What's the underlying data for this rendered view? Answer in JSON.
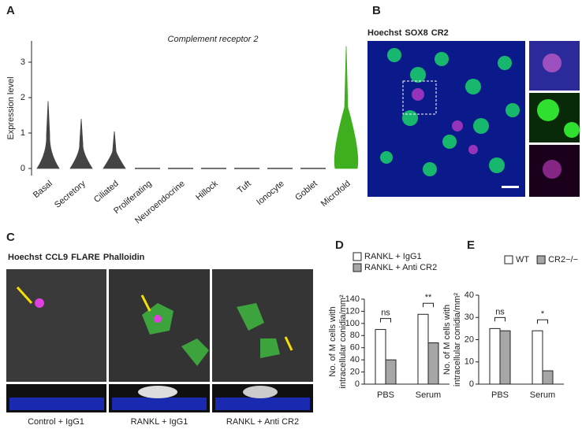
{
  "figure": {
    "b_label": "B",
    "b_legend": [
      "Hoechst",
      "SOX8",
      "CR2"
    ],
    "c_label": "C",
    "c_legend": [
      "Hoechst",
      "CCL9",
      "FLARE",
      "Phalloidin"
    ],
    "c_captions": [
      "Control + IgG1",
      "RANKL + IgG1",
      "RANKL + Anti CR2"
    ]
  },
  "chart_data": [
    {
      "type": "violin",
      "panel_label": "A",
      "title": "Complement receptor 2",
      "ylabel": "Expression level",
      "categories": [
        "Basal",
        "Secretory",
        "Ciliated",
        "Proliferating",
        "Neuroendocrine",
        "Hillock",
        "Tuft",
        "Ionocyte",
        "Goblet",
        "Microfold"
      ],
      "values": [
        1.9,
        1.4,
        1.05,
        0,
        0,
        0,
        0,
        0,
        0,
        3.45
      ],
      "colors": [
        "#444444",
        "#444444",
        "#444444",
        "#444444",
        "#444444",
        "#444444",
        "#444444",
        "#444444",
        "#444444",
        "#3fae1f"
      ],
      "ylim": [
        -0.2,
        3.6
      ],
      "yticks": [
        0,
        1,
        2,
        3
      ]
    },
    {
      "type": "bar",
      "panel_label": "D",
      "ylabel": [
        "No. of M cells with",
        "intracellular conidia/mm²"
      ],
      "categories": [
        "PBS",
        "Serum"
      ],
      "series": [
        {
          "name": "RANKL + IgG1",
          "color": "#ffffff",
          "values": [
            90,
            115
          ]
        },
        {
          "name": "RANKL + Anti CR2",
          "color": "#a6a6a6",
          "values": [
            40,
            68
          ]
        }
      ],
      "annotations": [
        "ns",
        "**"
      ],
      "ylim": [
        0,
        140
      ],
      "yticks": [
        0,
        20,
        40,
        60,
        80,
        100,
        120,
        140
      ]
    },
    {
      "type": "bar",
      "panel_label": "E",
      "ylabel": [
        "No. of M cells with",
        "intracellular conidia/mm²"
      ],
      "categories": [
        "PBS",
        "Serum"
      ],
      "series": [
        {
          "name": "WT",
          "color": "#ffffff",
          "values": [
            25,
            24
          ]
        },
        {
          "name": "CR2−/−",
          "color": "#a6a6a6",
          "values": [
            24,
            6
          ]
        }
      ],
      "annotations": [
        "ns",
        "*"
      ],
      "ylim": [
        0,
        40
      ],
      "yticks": [
        0,
        10,
        20,
        30,
        40
      ]
    }
  ]
}
